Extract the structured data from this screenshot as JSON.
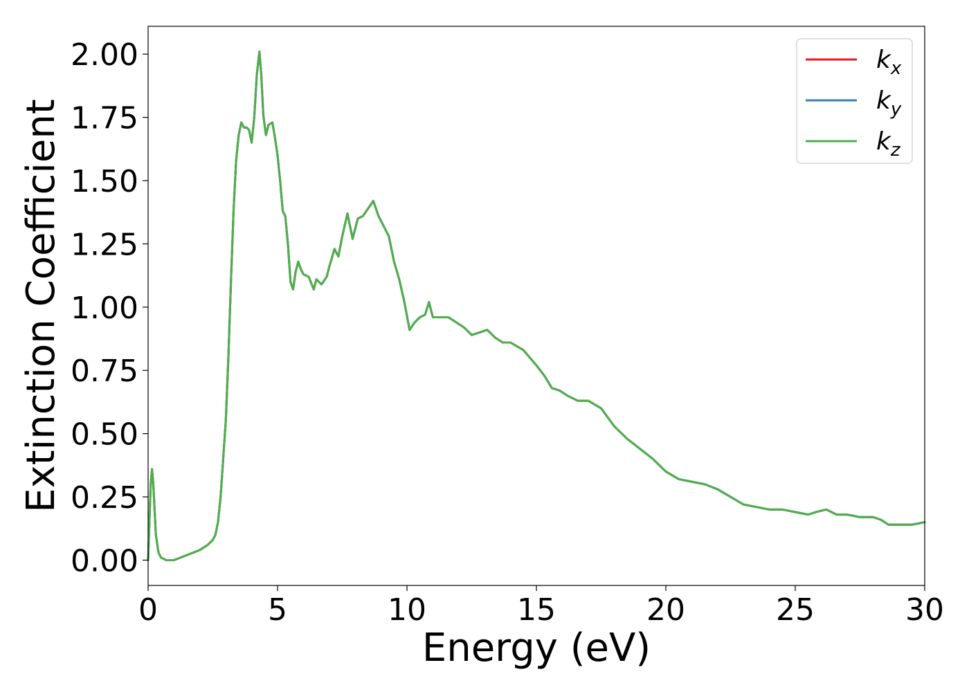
{
  "chart_data": {
    "type": "line",
    "xlabel": "Energy (eV)",
    "ylabel": "Extinction Coefficient",
    "xlim": [
      0,
      30
    ],
    "ylim": [
      -0.1,
      2.11
    ],
    "xticks": [
      0,
      5,
      10,
      15,
      20,
      25,
      30
    ],
    "xtick_labels": [
      "0",
      "5",
      "10",
      "15",
      "20",
      "25",
      "30"
    ],
    "yticks": [
      0,
      0.25,
      0.5,
      0.75,
      1.0,
      1.25,
      1.5,
      1.75,
      2.0
    ],
    "ytick_labels": [
      "0.00",
      "0.25",
      "0.50",
      "0.75",
      "1.00",
      "1.25",
      "1.50",
      "1.75",
      "2.00"
    ],
    "grid": false,
    "legend_position": "top-right",
    "x": [
      0,
      0.1,
      0.15,
      0.2,
      0.3,
      0.4,
      0.5,
      0.7,
      1.0,
      1.5,
      2.0,
      2.3,
      2.5,
      2.6,
      2.7,
      2.8,
      2.9,
      3.0,
      3.1,
      3.2,
      3.3,
      3.4,
      3.5,
      3.6,
      3.7,
      3.8,
      3.9,
      4.0,
      4.1,
      4.2,
      4.3,
      4.37,
      4.45,
      4.55,
      4.65,
      4.8,
      4.9,
      5.0,
      5.1,
      5.2,
      5.3,
      5.4,
      5.5,
      5.6,
      5.7,
      5.8,
      5.9,
      6.0,
      6.2,
      6.4,
      6.5,
      6.6,
      6.7,
      6.9,
      7.0,
      7.2,
      7.35,
      7.5,
      7.7,
      7.9,
      8.1,
      8.3,
      8.5,
      8.7,
      8.9,
      9.1,
      9.3,
      9.5,
      9.7,
      9.9,
      10.1,
      10.3,
      10.5,
      10.7,
      10.85,
      11.0,
      11.3,
      11.6,
      11.9,
      12.2,
      12.5,
      12.8,
      13.1,
      13.4,
      13.7,
      14.0,
      14.5,
      15.0,
      15.3,
      15.6,
      15.9,
      16.2,
      16.6,
      17.0,
      17.5,
      18.0,
      18.5,
      19.0,
      19.5,
      20.0,
      20.5,
      21.0,
      21.5,
      22.0,
      22.5,
      23.0,
      23.5,
      24.0,
      24.5,
      25.0,
      25.5,
      25.8,
      26.2,
      26.6,
      27.0,
      27.5,
      28.0,
      28.3,
      28.6,
      29.0,
      29.5,
      30.0
    ],
    "series": [
      {
        "name": "k_x",
        "label_main": "k",
        "label_sub": "x",
        "color": "#e41a1c",
        "values": [
          0.0,
          0.3,
          0.36,
          0.3,
          0.1,
          0.03,
          0.01,
          0.0,
          0.0,
          0.02,
          0.04,
          0.06,
          0.08,
          0.1,
          0.15,
          0.25,
          0.4,
          0.55,
          0.8,
          1.1,
          1.38,
          1.58,
          1.68,
          1.73,
          1.71,
          1.71,
          1.7,
          1.65,
          1.75,
          1.92,
          2.01,
          1.92,
          1.76,
          1.68,
          1.72,
          1.73,
          1.67,
          1.6,
          1.5,
          1.38,
          1.36,
          1.25,
          1.1,
          1.07,
          1.14,
          1.18,
          1.15,
          1.13,
          1.12,
          1.07,
          1.11,
          1.1,
          1.09,
          1.12,
          1.16,
          1.23,
          1.2,
          1.28,
          1.37,
          1.27,
          1.35,
          1.36,
          1.39,
          1.42,
          1.36,
          1.32,
          1.28,
          1.18,
          1.11,
          1.02,
          0.91,
          0.94,
          0.96,
          0.97,
          1.02,
          0.96,
          0.96,
          0.96,
          0.94,
          0.92,
          0.89,
          0.9,
          0.91,
          0.88,
          0.86,
          0.86,
          0.83,
          0.77,
          0.73,
          0.68,
          0.67,
          0.65,
          0.63,
          0.63,
          0.6,
          0.53,
          0.48,
          0.44,
          0.4,
          0.35,
          0.32,
          0.31,
          0.3,
          0.28,
          0.25,
          0.22,
          0.21,
          0.2,
          0.2,
          0.19,
          0.18,
          0.19,
          0.2,
          0.18,
          0.18,
          0.17,
          0.17,
          0.16,
          0.14,
          0.14,
          0.14,
          0.15
        ]
      },
      {
        "name": "k_y",
        "label_main": "k",
        "label_sub": "y",
        "color": "#377eb8",
        "values": [
          0.0,
          0.3,
          0.36,
          0.3,
          0.1,
          0.03,
          0.01,
          0.0,
          0.0,
          0.02,
          0.04,
          0.06,
          0.08,
          0.1,
          0.15,
          0.25,
          0.4,
          0.55,
          0.8,
          1.1,
          1.38,
          1.58,
          1.68,
          1.73,
          1.71,
          1.71,
          1.7,
          1.65,
          1.75,
          1.92,
          2.01,
          1.92,
          1.76,
          1.68,
          1.72,
          1.73,
          1.67,
          1.6,
          1.5,
          1.38,
          1.36,
          1.25,
          1.1,
          1.07,
          1.14,
          1.18,
          1.15,
          1.13,
          1.12,
          1.07,
          1.11,
          1.1,
          1.09,
          1.12,
          1.16,
          1.23,
          1.2,
          1.28,
          1.37,
          1.27,
          1.35,
          1.36,
          1.39,
          1.42,
          1.36,
          1.32,
          1.28,
          1.18,
          1.11,
          1.02,
          0.91,
          0.94,
          0.96,
          0.97,
          1.02,
          0.96,
          0.96,
          0.96,
          0.94,
          0.92,
          0.89,
          0.9,
          0.91,
          0.88,
          0.86,
          0.86,
          0.83,
          0.77,
          0.73,
          0.68,
          0.67,
          0.65,
          0.63,
          0.63,
          0.6,
          0.53,
          0.48,
          0.44,
          0.4,
          0.35,
          0.32,
          0.31,
          0.3,
          0.28,
          0.25,
          0.22,
          0.21,
          0.2,
          0.2,
          0.19,
          0.18,
          0.19,
          0.2,
          0.18,
          0.18,
          0.17,
          0.17,
          0.16,
          0.14,
          0.14,
          0.14,
          0.15
        ]
      },
      {
        "name": "k_z",
        "label_main": "k",
        "label_sub": "z",
        "color": "#4daf4a",
        "values": [
          0.0,
          0.3,
          0.36,
          0.3,
          0.1,
          0.03,
          0.01,
          0.0,
          0.0,
          0.02,
          0.04,
          0.06,
          0.08,
          0.1,
          0.15,
          0.25,
          0.4,
          0.55,
          0.8,
          1.1,
          1.38,
          1.58,
          1.68,
          1.73,
          1.71,
          1.71,
          1.7,
          1.65,
          1.75,
          1.92,
          2.01,
          1.92,
          1.76,
          1.68,
          1.72,
          1.73,
          1.67,
          1.6,
          1.5,
          1.38,
          1.36,
          1.25,
          1.1,
          1.07,
          1.14,
          1.18,
          1.15,
          1.13,
          1.12,
          1.07,
          1.11,
          1.1,
          1.09,
          1.12,
          1.16,
          1.23,
          1.2,
          1.28,
          1.37,
          1.27,
          1.35,
          1.36,
          1.39,
          1.42,
          1.36,
          1.32,
          1.28,
          1.18,
          1.11,
          1.02,
          0.91,
          0.94,
          0.96,
          0.97,
          1.02,
          0.96,
          0.96,
          0.96,
          0.94,
          0.92,
          0.89,
          0.9,
          0.91,
          0.88,
          0.86,
          0.86,
          0.83,
          0.77,
          0.73,
          0.68,
          0.67,
          0.65,
          0.63,
          0.63,
          0.6,
          0.53,
          0.48,
          0.44,
          0.4,
          0.35,
          0.32,
          0.31,
          0.3,
          0.28,
          0.25,
          0.22,
          0.21,
          0.2,
          0.2,
          0.19,
          0.18,
          0.19,
          0.2,
          0.18,
          0.18,
          0.17,
          0.17,
          0.16,
          0.14,
          0.14,
          0.14,
          0.15
        ]
      }
    ]
  }
}
